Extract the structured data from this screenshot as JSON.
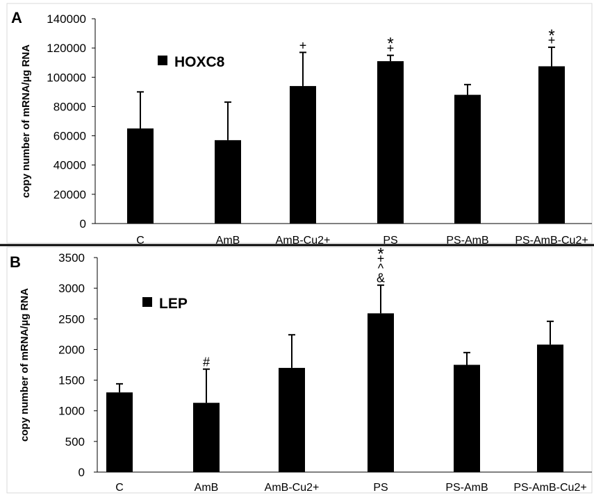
{
  "colors": {
    "bar": "#000000",
    "axis": "#000000",
    "frame": "#d9d9d9",
    "divider": "#000000"
  },
  "chart_data": [
    {
      "type": "bar",
      "panel_label": "A",
      "legend": "HOXC8",
      "ylabel": "copy number of mRNA/µg RNA",
      "ylim": [
        0,
        140000
      ],
      "yticks": [
        "0",
        "20000",
        "40000",
        "60000",
        "80000",
        "100000",
        "120000",
        "140000"
      ],
      "categories": [
        "C",
        "AmB",
        "AmB-Cu2+",
        "PS",
        "PS-AmB",
        "PS-AmB-Cu2+"
      ],
      "values": [
        65000,
        57000,
        94000,
        111000,
        88000,
        107500
      ],
      "errors": [
        25000,
        26000,
        23000,
        4000,
        7000,
        13000
      ],
      "significance": [
        [],
        [],
        [
          "+"
        ],
        [
          "*",
          "+"
        ],
        [],
        [
          "*",
          "+"
        ]
      ]
    },
    {
      "type": "bar",
      "panel_label": "B",
      "legend": "LEP",
      "ylabel": "copy number of mRNA/µg RNA",
      "ylim": [
        0,
        3500
      ],
      "yticks": [
        "0",
        "500",
        "1000",
        "1500",
        "2000",
        "2500",
        "3000",
        "3500"
      ],
      "categories": [
        "C",
        "AmB",
        "AmB-Cu2+",
        "PS",
        "PS-AmB",
        "PS-AmB-Cu2+"
      ],
      "values": [
        1300,
        1130,
        1700,
        2590,
        1750,
        2080
      ],
      "errors": [
        140,
        550,
        540,
        460,
        200,
        380
      ],
      "significance": [
        [],
        [
          "#"
        ],
        [],
        [
          "*",
          "+",
          "^",
          "&"
        ],
        [],
        []
      ]
    }
  ]
}
